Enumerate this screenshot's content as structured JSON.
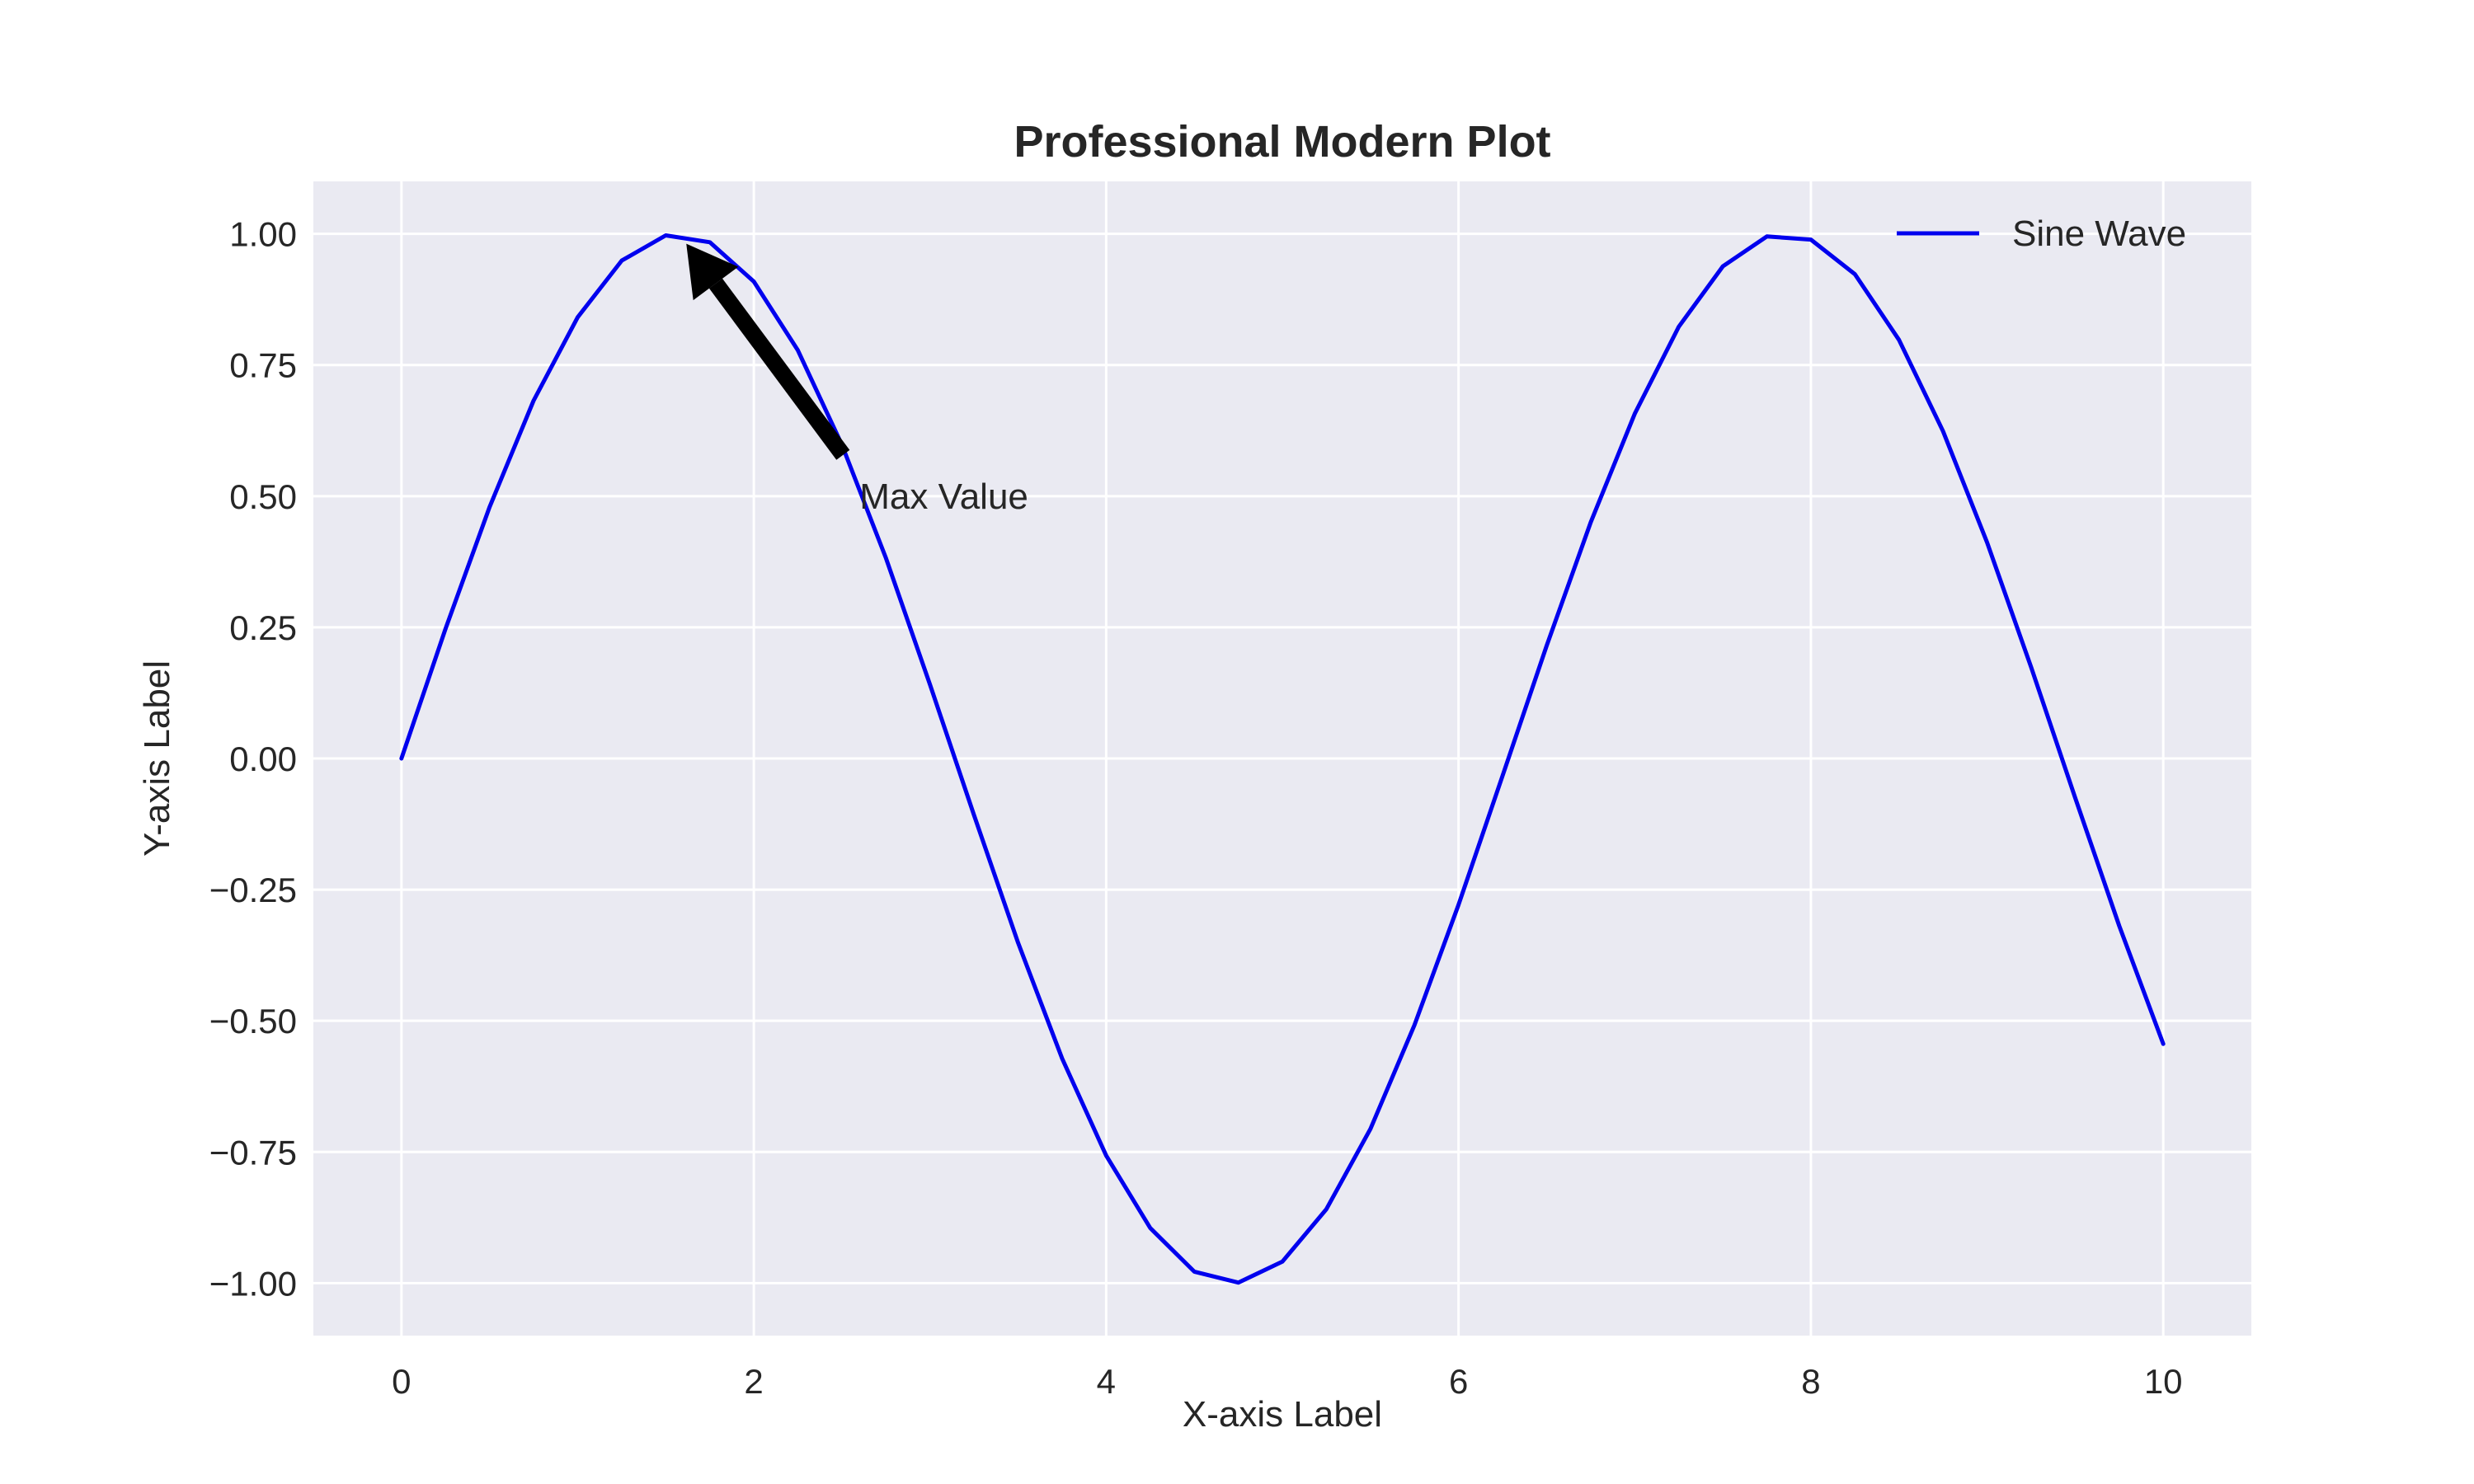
{
  "chart_data": {
    "type": "line",
    "title": "Professional Modern Plot",
    "xlabel": "X-axis Label",
    "ylabel": "Y-axis Label",
    "xlim": [
      -0.5,
      10.5
    ],
    "ylim": [
      -1.1,
      1.1
    ],
    "xticks": [
      0,
      2,
      4,
      6,
      8,
      10
    ],
    "xtick_labels": [
      "0",
      "2",
      "4",
      "6",
      "8",
      "10"
    ],
    "yticks": [
      -1.0,
      -0.75,
      -0.5,
      -0.25,
      0.0,
      0.25,
      0.5,
      0.75,
      1.0
    ],
    "ytick_labels": [
      "−1.00",
      "−0.75",
      "−0.50",
      "−0.25",
      "0.00",
      "0.25",
      "0.50",
      "0.75",
      "1.00"
    ],
    "grid": true,
    "legend_position": "top-right",
    "background_color": "#eaeaf2",
    "grid_color": "#ffffff",
    "series": [
      {
        "name": "Sine Wave",
        "color": "#0000ee",
        "x": [
          0.0,
          0.25,
          0.5,
          0.75,
          1.0,
          1.25,
          1.5,
          1.75,
          2.0,
          2.25,
          2.5,
          2.75,
          3.0,
          3.25,
          3.5,
          3.75,
          4.0,
          4.25,
          4.5,
          4.75,
          5.0,
          5.25,
          5.5,
          5.75,
          6.0,
          6.25,
          6.5,
          6.75,
          7.0,
          7.25,
          7.5,
          7.75,
          8.0,
          8.25,
          8.5,
          8.75,
          9.0,
          9.25,
          9.5,
          9.75,
          10.0
        ],
        "y": [
          0.0,
          0.247,
          0.479,
          0.682,
          0.841,
          0.949,
          0.997,
          0.984,
          0.909,
          0.778,
          0.598,
          0.382,
          0.141,
          -0.108,
          -0.351,
          -0.572,
          -0.757,
          -0.895,
          -0.978,
          -0.999,
          -0.959,
          -0.859,
          -0.706,
          -0.508,
          -0.279,
          -0.033,
          0.215,
          0.45,
          0.657,
          0.823,
          0.938,
          0.995,
          0.989,
          0.923,
          0.798,
          0.624,
          0.412,
          0.174,
          -0.075,
          -0.319,
          -0.544
        ]
      }
    ],
    "annotations": [
      {
        "text": "Max Value",
        "xy": [
          1.57,
          1.0
        ],
        "xytext": [
          2.6,
          0.5
        ]
      }
    ]
  }
}
